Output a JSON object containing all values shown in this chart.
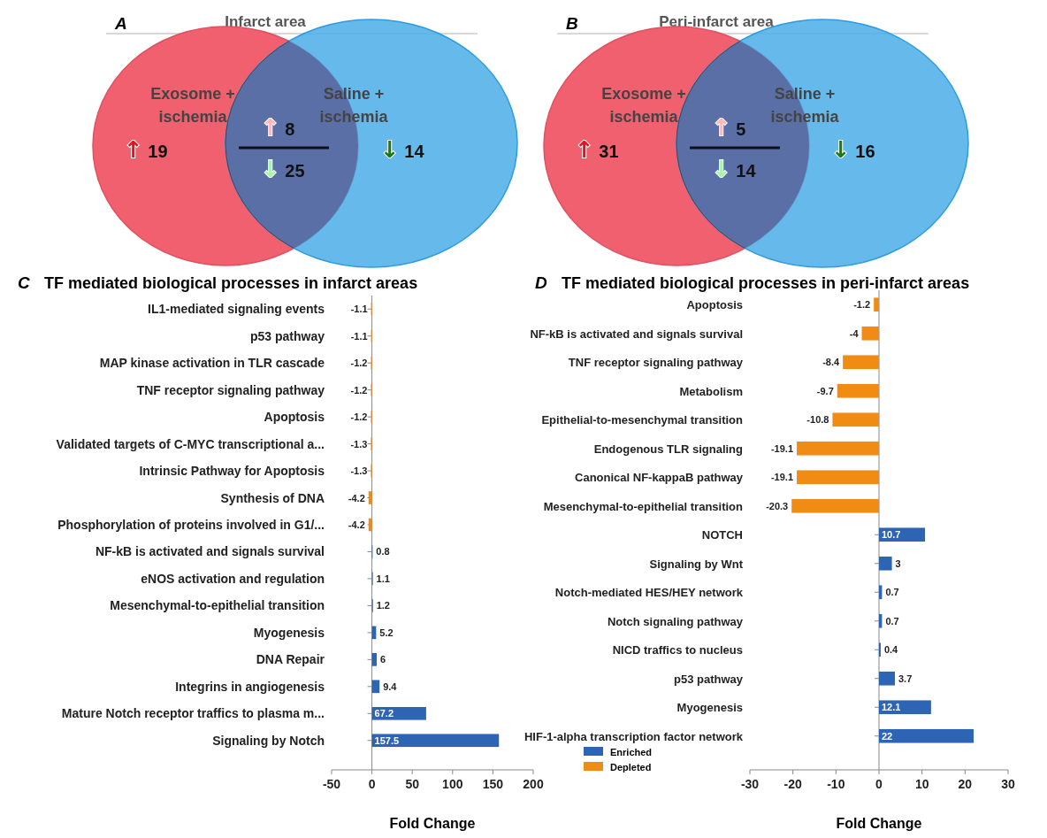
{
  "chart_data": [
    {
      "type": "other",
      "title": "Infarct area",
      "annotations": [
        "A",
        "↑ 19",
        "↑ 8",
        "↓ 25",
        "↓ 14"
      ],
      "categories": [
        "Exosome + ischemia",
        null,
        "Saline + ischemia"
      ],
      "colors": [
        "#f0606e",
        "#5a6fa6",
        "#4aaee8"
      ]
    },
    {
      "type": "other",
      "title": "Peri-infarct area",
      "annotations": [
        "B",
        "↑ 31",
        "↑ 5",
        "↓ 14",
        "↓ 16"
      ],
      "categories": [
        "Exosome + ischemia",
        null,
        "Saline + ischemia"
      ],
      "colors": [
        "#f0606e",
        "#5a6fa6",
        "#4aaee8"
      ]
    },
    {
      "type": "bar",
      "orientation": "horizontal",
      "title": "TF mediated biological processes  in infarct areas",
      "annotations": [
        "C"
      ],
      "xlabel": "Fold Change",
      "xlim": [
        -50,
        200
      ],
      "xticks": [
        -50,
        0,
        50,
        100,
        150,
        200
      ],
      "data_labels": true,
      "legend": "bottom right",
      "categories": [
        "IL1-mediated signaling events",
        "p53 pathway",
        "MAP kinase activation in TLR cascade",
        "TNF receptor signaling pathway",
        "Apoptosis",
        "Validated targets of C-MYC transcriptional a...",
        "Intrinsic Pathway for Apoptosis",
        "Synthesis of DNA",
        "Phosphorylation of proteins involved in G1/...",
        "NF-kB is activated and signals survival",
        "eNOS activation and regulation",
        "Mesenchymal-to-epithelial transition",
        "Myogenesis",
        "DNA Repair",
        "Integrins in angiogenesis",
        "Mature Notch receptor traffics to plasma m...",
        "Signaling by Notch"
      ],
      "series": [
        {
          "name": "Enriched",
          "color": "#2e64b4",
          "values": [
            null,
            null,
            null,
            null,
            null,
            null,
            null,
            null,
            null,
            0.8,
            1.1,
            1.2,
            5.2,
            6,
            9.4,
            67.2,
            157.5
          ]
        },
        {
          "name": "Depleted",
          "color": "#f08c14",
          "values": [
            -1.1,
            -1.1,
            -1.2,
            -1.2,
            -1.2,
            -1.3,
            -1.3,
            -4.2,
            -4.2,
            null,
            null,
            null,
            null,
            null,
            null,
            null,
            null
          ]
        }
      ]
    },
    {
      "type": "bar",
      "orientation": "horizontal",
      "title": "TF mediated biological processes  in peri-infarct areas",
      "annotations": [
        "D"
      ],
      "xlabel": "Fold Change",
      "xlim": [
        -30,
        30
      ],
      "xticks": [
        -30,
        -20,
        -10,
        0,
        10,
        20,
        30
      ],
      "data_labels": true,
      "categories": [
        "Apoptosis",
        "NF-kB is activated and signals survival",
        "TNF receptor signaling pathway",
        "Metabolism",
        "Epithelial-to-mesenchymal transition",
        "Endogenous TLR signaling",
        "Canonical NF-kappaB pathway",
        "Mesenchymal-to-epithelial transition",
        "NOTCH",
        "Signaling by Wnt",
        "Notch-mediated HES/HEY network",
        "Notch signaling pathway",
        "NICD traffics to nucleus",
        "p53 pathway",
        "Myogenesis",
        "HIF-1-alpha transcription factor network"
      ],
      "series": [
        {
          "color": "#2e64b4",
          "values": [
            null,
            null,
            null,
            null,
            null,
            null,
            null,
            null,
            10.7,
            3,
            0.7,
            0.7,
            0.4,
            3.7,
            12.1,
            22
          ]
        },
        {
          "color": "#f08c14",
          "values": [
            -1.2,
            -4,
            -8.4,
            -9.7,
            -10.8,
            -19.1,
            -19.1,
            -20.3,
            null,
            null,
            null,
            null,
            null,
            null,
            null,
            null
          ]
        }
      ]
    }
  ]
}
